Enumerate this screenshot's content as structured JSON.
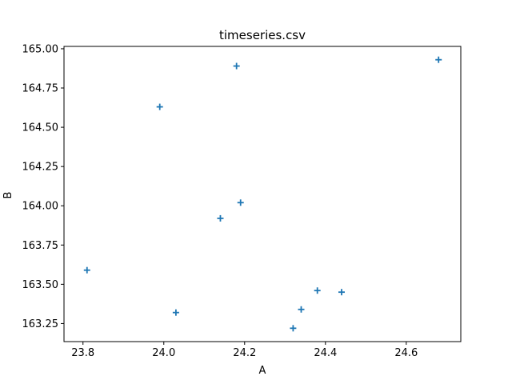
{
  "chart_data": {
    "type": "scatter",
    "title": "timeseries.csv",
    "xlabel": "A",
    "ylabel": "B",
    "xlim": [
      23.753,
      24.735
    ],
    "ylim": [
      163.135,
      165.015
    ],
    "xticks": [
      23.8,
      24.0,
      24.2,
      24.4,
      24.6
    ],
    "xtick_labels": [
      "23.8",
      "24.0",
      "24.2",
      "24.4",
      "24.6"
    ],
    "yticks": [
      163.25,
      163.5,
      163.75,
      164.0,
      164.25,
      164.5,
      164.75,
      165.0
    ],
    "ytick_labels": [
      "163.25",
      "163.50",
      "163.75",
      "164.00",
      "164.25",
      "164.50",
      "164.75",
      "165.00"
    ],
    "grid": false,
    "marker": "+",
    "color": "#1f77b4",
    "series": [
      {
        "points": [
          {
            "x": 23.81,
            "y": 163.59
          },
          {
            "x": 23.99,
            "y": 164.63
          },
          {
            "x": 24.03,
            "y": 163.32
          },
          {
            "x": 24.14,
            "y": 163.92
          },
          {
            "x": 24.18,
            "y": 164.89
          },
          {
            "x": 24.19,
            "y": 164.02
          },
          {
            "x": 24.32,
            "y": 163.22
          },
          {
            "x": 24.34,
            "y": 163.34
          },
          {
            "x": 24.38,
            "y": 163.46
          },
          {
            "x": 24.44,
            "y": 163.45
          },
          {
            "x": 24.68,
            "y": 164.93
          }
        ]
      }
    ]
  }
}
